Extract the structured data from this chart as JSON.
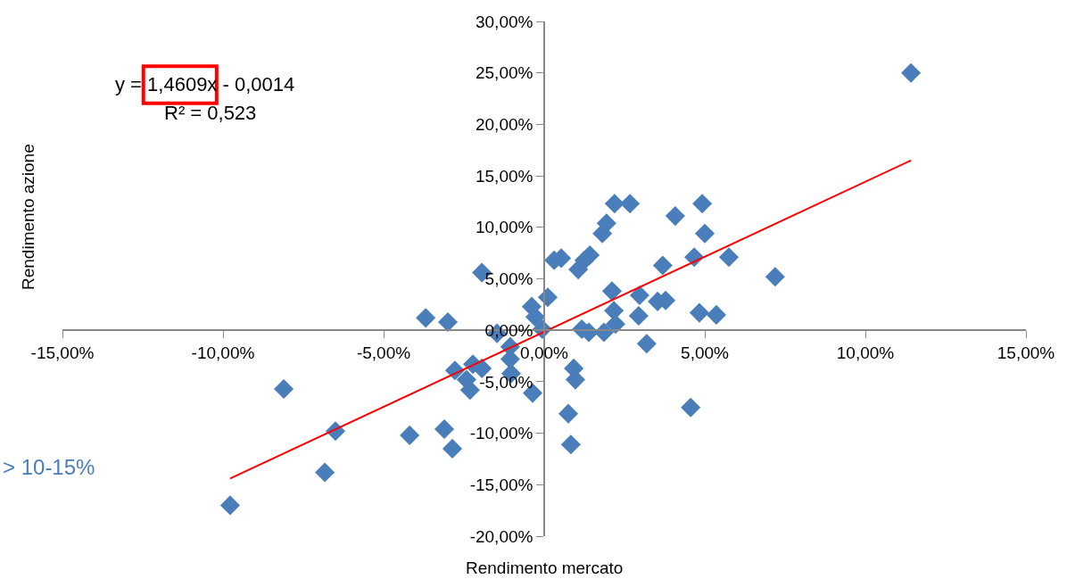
{
  "chart_data": {
    "type": "scatter",
    "xlabel": "Rendimento mercato",
    "ylabel": "Rendimento azione",
    "annotations": [
      "y = 1,4609x - 0,0014",
      "R² = 0,523",
      "> 10-15%"
    ],
    "series": [
      {
        "color": "#4a7ebb",
        "marker": "diamond",
        "x": [
          11.42,
          7.19,
          5.75,
          4.92,
          5.0,
          4.67,
          3.69,
          4.08,
          2.67,
          2.19,
          1.94,
          1.81,
          1.42,
          1.25,
          1.06,
          0.31,
          0.53,
          0.11,
          -0.39,
          -0.28,
          -0.06,
          2.11,
          2.17,
          2.97,
          2.94,
          3.53,
          3.78,
          3.19,
          4.83,
          5.36,
          4.56,
          1.17,
          1.39,
          1.86,
          2.22,
          0.75,
          0.83,
          0.92,
          0.97,
          -0.36,
          -1.47,
          -1.06,
          -1.06,
          -1.03,
          -3.69,
          -3.0,
          -8.11,
          -6.5,
          -6.83,
          -9.78,
          -4.19,
          -3.11,
          -2.86,
          -2.78,
          -2.22,
          -1.94,
          -2.31,
          -2.42,
          -1.94
        ],
        "values": [
          25.0,
          5.2,
          7.1,
          12.3,
          9.4,
          7.1,
          6.3,
          11.1,
          12.3,
          12.3,
          10.4,
          9.4,
          7.3,
          6.8,
          5.9,
          6.8,
          7.0,
          3.2,
          2.3,
          1.3,
          0.1,
          3.8,
          1.9,
          3.4,
          1.4,
          2.8,
          2.9,
          -1.3,
          1.7,
          1.5,
          -7.5,
          0.1,
          -0.2,
          -0.2,
          0.6,
          -8.1,
          -11.1,
          -3.7,
          -4.8,
          -6.1,
          -0.3,
          -1.6,
          -2.8,
          -4.2,
          1.2,
          0.8,
          -5.7,
          -9.8,
          -13.8,
          -17.0,
          -10.2,
          -9.6,
          -11.5,
          -3.9,
          -3.3,
          -3.7,
          -5.8,
          -4.8,
          5.6
        ]
      },
      {
        "type": "line",
        "color": "#ff0000",
        "line_style": "solid",
        "x": [
          -9.78,
          11.42
        ],
        "values": [
          -14.4,
          16.5
        ]
      }
    ],
    "xlim": [
      -15,
      15
    ],
    "ylim": [
      -20,
      30
    ],
    "xticks": [
      {
        "value": -15,
        "label": "-15,00%"
      },
      {
        "value": -10,
        "label": "-10,00%"
      },
      {
        "value": -5,
        "label": "-5,00%"
      },
      {
        "value": 0,
        "label": "0,00%"
      },
      {
        "value": 5,
        "label": "5,00%"
      },
      {
        "value": 10,
        "label": "10,00%"
      },
      {
        "value": 15,
        "label": "15,00%"
      }
    ],
    "yticks": [
      {
        "value": -20,
        "label": "-20,00%"
      },
      {
        "value": -15,
        "label": "-15,00%"
      },
      {
        "value": -10,
        "label": "-10,00%"
      },
      {
        "value": -5,
        "label": "-5,00%"
      },
      {
        "value": 0,
        "label": "0,00%"
      },
      {
        "value": 5,
        "label": "5,00%"
      },
      {
        "value": 10,
        "label": "10,00%"
      },
      {
        "value": 15,
        "label": "15,00%"
      },
      {
        "value": 20,
        "label": "20,00%"
      },
      {
        "value": 25,
        "label": "25,00%"
      },
      {
        "value": 30,
        "label": "30,00%"
      }
    ],
    "tick_labels": "xy"
  }
}
